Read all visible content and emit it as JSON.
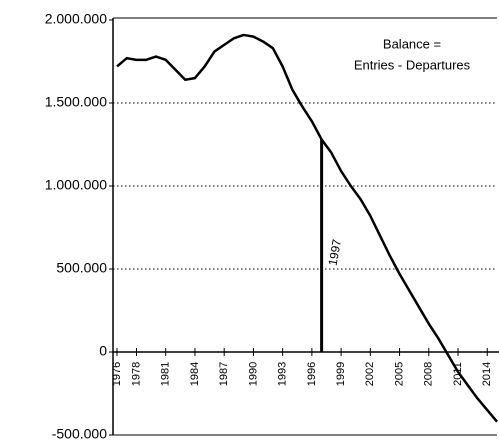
{
  "chart_data": {
    "type": "line",
    "annotations": [
      {
        "text": "Balance ="
      },
      {
        "text": "Entries - Departures"
      },
      {
        "text": "1997",
        "x": 1997
      }
    ],
    "x": [
      1976,
      1977,
      1978,
      1979,
      1980,
      1981,
      1982,
      1983,
      1984,
      1985,
      1986,
      1987,
      1988,
      1989,
      1990,
      1991,
      1992,
      1993,
      1994,
      1995,
      1996,
      1997,
      1998,
      1999,
      2000,
      2001,
      2002,
      2003,
      2004,
      2005,
      2006,
      2007,
      2008,
      2009,
      2010,
      2011,
      2012,
      2013,
      2014,
      2015
    ],
    "series": [
      {
        "name": "Balance",
        "color": "#000000",
        "values": [
          1720000,
          1770000,
          1760000,
          1760000,
          1780000,
          1760000,
          1700000,
          1640000,
          1650000,
          1720000,
          1810000,
          1850000,
          1890000,
          1910000,
          1900000,
          1870000,
          1830000,
          1720000,
          1580000,
          1480000,
          1390000,
          1280000,
          1200000,
          1090000,
          1000000,
          920000,
          820000,
          700000,
          580000,
          470000,
          370000,
          270000,
          170000,
          80000,
          -20000,
          -120000,
          -200000,
          -280000,
          -350000,
          -420000
        ]
      }
    ],
    "xlim": [
      1976,
      2015
    ],
    "xticks": [
      1976,
      1978,
      1981,
      1984,
      1987,
      1990,
      1993,
      1996,
      1999,
      2002,
      2005,
      2008,
      2011,
      2014
    ],
    "ylim": [
      -500000,
      2000000
    ],
    "yticks": [
      {
        "value": -500000,
        "label": "-500.000"
      },
      0,
      {
        "value": 500000,
        "label": "500.000"
      },
      {
        "value": 1000000,
        "label": "1.000.000"
      },
      {
        "value": 1500000,
        "label": "1.500.000"
      },
      {
        "value": 2000000,
        "label": "2.000.000"
      }
    ],
    "grid": true
  }
}
